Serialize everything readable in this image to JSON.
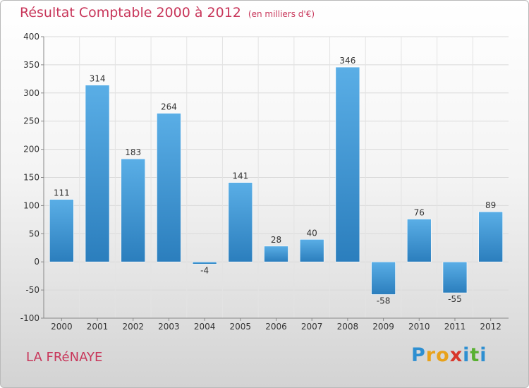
{
  "header": {
    "title": "Résultat Comptable 2000 à 2012",
    "unit": "(en milliers d'€)"
  },
  "footer": {
    "commune": "LA FRéNAYE",
    "logo_letters": [
      "P",
      "r",
      "o",
      "x",
      "i",
      "t",
      "i"
    ],
    "logo_colors": [
      "#2e8fd1",
      "#e8a21b",
      "#e8a21b",
      "#d8372b",
      "#2e8fd1",
      "#58b030",
      "#2e8fd1"
    ]
  },
  "chart_data": {
    "type": "bar",
    "title": "Résultat Comptable 2000 à 2012",
    "xlabel": "",
    "ylabel": "",
    "categories": [
      "2000",
      "2001",
      "2002",
      "2003",
      "2004",
      "2005",
      "2006",
      "2007",
      "2008",
      "2009",
      "2010",
      "2011",
      "2012"
    ],
    "values": [
      111,
      314,
      183,
      264,
      -4,
      141,
      28,
      40,
      346,
      -58,
      76,
      -55,
      89
    ],
    "labels": [
      "111",
      "314",
      "183",
      "264",
      "-4",
      "141",
      "28",
      "40",
      "346",
      "-58",
      "76",
      "-55",
      "89"
    ],
    "ylim": [
      -100,
      400
    ],
    "yticks": [
      -100,
      -50,
      0,
      50,
      100,
      150,
      200,
      250,
      300,
      350,
      400
    ],
    "grid": true,
    "bar_color_top": "#5aaee6",
    "bar_color_bottom": "#2b7ebd"
  }
}
